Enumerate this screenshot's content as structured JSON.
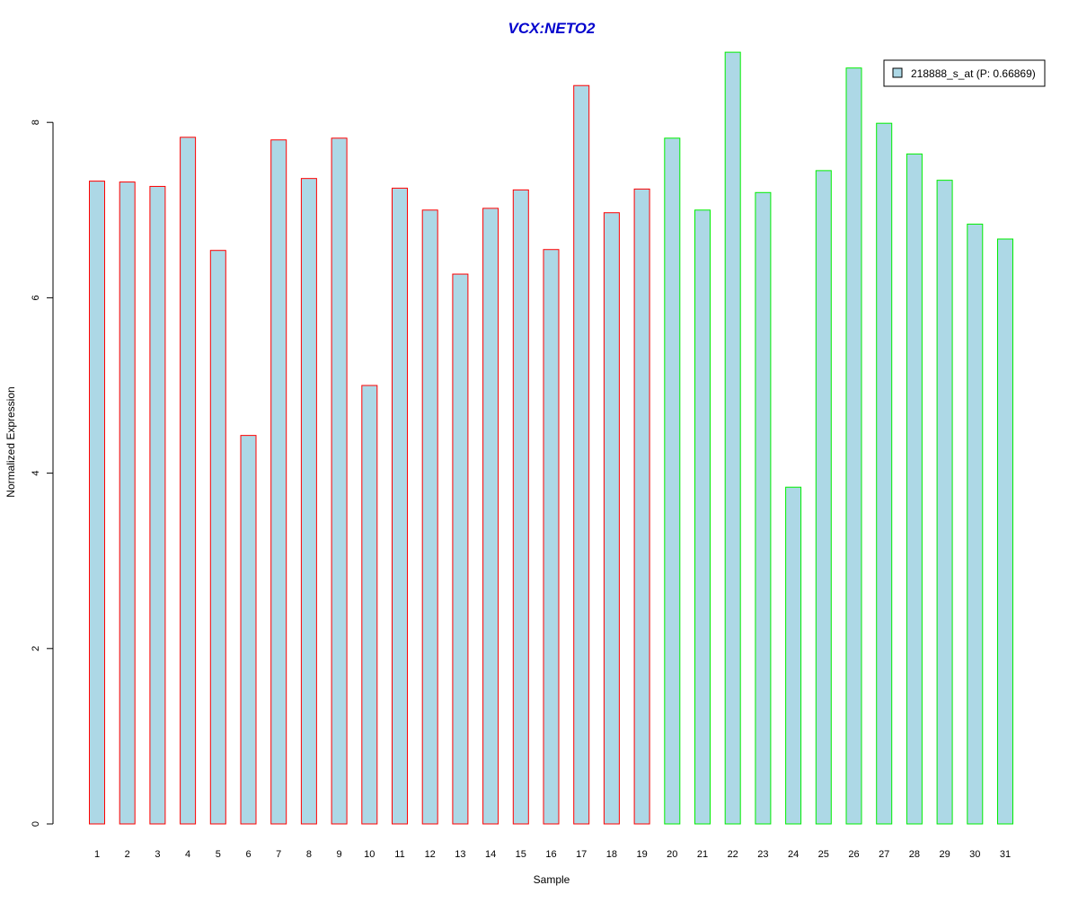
{
  "chart_data": {
    "type": "bar",
    "title": "VCX:NETO2",
    "xlabel": "Sample",
    "ylabel": "Normalized Expression",
    "ylim": [
      0,
      8.8
    ],
    "yticks": [
      0,
      2,
      4,
      6,
      8
    ],
    "grid": false,
    "legend_position": "top-right",
    "categories": [
      "1",
      "2",
      "3",
      "4",
      "5",
      "6",
      "7",
      "8",
      "9",
      "10",
      "11",
      "12",
      "13",
      "14",
      "15",
      "16",
      "17",
      "18",
      "19",
      "20",
      "21",
      "22",
      "23",
      "24",
      "25",
      "26",
      "27",
      "28",
      "29",
      "30",
      "31"
    ],
    "series": [
      {
        "name": "218888_s_at (P: 0.66869)",
        "values": [
          7.33,
          7.32,
          7.27,
          7.83,
          6.54,
          4.43,
          7.8,
          7.36,
          7.82,
          5.0,
          7.25,
          7.0,
          6.27,
          7.02,
          7.23,
          6.55,
          8.42,
          6.97,
          7.24,
          7.82,
          7.0,
          8.8,
          7.2,
          3.84,
          7.45,
          8.62,
          7.99,
          7.64,
          7.34,
          6.84,
          6.67
        ]
      }
    ],
    "groups": [
      1,
      1,
      1,
      1,
      1,
      1,
      1,
      1,
      1,
      1,
      1,
      1,
      1,
      1,
      1,
      1,
      1,
      1,
      1,
      2,
      2,
      2,
      2,
      2,
      2,
      2,
      2,
      2,
      2,
      2,
      2
    ],
    "colors": {
      "bar_fill": "#add8e6",
      "group1_border": "#ff0000",
      "group2_border": "#00ee00",
      "title": "#0000cd",
      "axis": "#000000"
    }
  }
}
